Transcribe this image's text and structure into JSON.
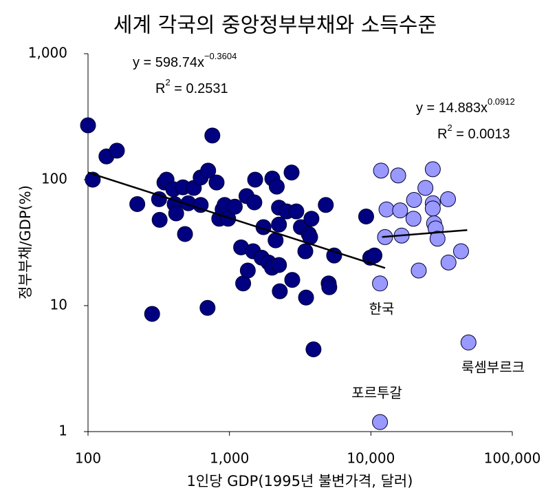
{
  "chart_data": {
    "type": "scatter",
    "title": "세계 각국의 중앙정부부채와 소득수준",
    "xlabel": "1인당 GDP(1995년 불변가격, 달러)",
    "ylabel": "정부부채/GDP(%)",
    "xscale": "log",
    "yscale": "log",
    "xlim": [
      100,
      100000
    ],
    "ylim": [
      1,
      1000
    ],
    "xticks": [
      100,
      {
        "value": 1000,
        "label": "1,000"
      },
      {
        "value": 10000,
        "label": "10,000"
      },
      {
        "value": 100000,
        "label": "100,000"
      }
    ],
    "yticks": [
      1,
      10,
      100,
      {
        "value": 1000,
        "label": "1,000"
      }
    ],
    "series": [
      {
        "color": "#000080",
        "x": [
          100,
          108,
          135,
          160,
          223,
          284,
          318,
          321,
          347,
          359,
          401,
          410,
          420,
          469,
          485,
          512,
          560,
          626,
          626,
          707,
          700,
          757,
          811,
          847,
          895,
          925,
          979,
          1091,
          1209,
          1250,
          1320,
          1348,
          1470,
          1520,
          1500,
          1740,
          1690,
          1890,
          2000,
          2010,
          2120,
          2160,
          2240,
          2240,
          2240,
          2270,
          2540,
          2750,
          2780,
          2970,
          3200,
          3440,
          3480,
          3640,
          3720,
          3800,
          3930,
          4800,
          5030,
          5080,
          5500,
          9260,
          9900,
          10600
        ],
        "values": [
          270,
          100,
          153,
          170,
          64,
          8.6,
          70,
          48,
          95,
          100,
          84,
          64,
          54,
          87,
          37,
          65,
          86,
          63,
          104,
          118,
          9.6,
          224,
          95,
          49,
          58,
          63,
          49,
          61,
          29,
          15,
          74,
          19,
          27,
          100,
          66,
          42,
          24,
          22,
          20,
          102,
          33,
          88,
          21,
          44,
          60,
          13,
          56,
          114,
          16,
          56,
          42,
          27,
          11.6,
          37,
          35,
          49,
          4.5,
          63,
          15,
          14,
          25,
          51,
          24,
          25
        ]
      },
      {
        "color": "#9999ff",
        "x": [
          11800,
          11600,
          12900,
          12600,
          15600,
          16100,
          16500,
          20200,
          20000,
          21800,
          24300,
          27400,
          27400,
          27400,
          28000,
          28700,
          29600,
          35100,
          35400,
          43400,
          49000,
          11600
        ],
        "values": [
          118,
          15,
          58,
          35,
          108,
          57,
          36,
          69,
          49,
          19,
          86,
          121,
          65,
          59,
          45,
          41,
          34,
          70,
          22,
          27,
          5.1,
          1.19
        ]
      }
    ],
    "trendlines": [
      {
        "color": "#000000",
        "x": [
          100,
          12600
        ],
        "values": [
          114,
          19.9
        ]
      },
      {
        "color": "#000000",
        "x": [
          12000,
          48000
        ],
        "values": [
          35.1,
          39.8
        ]
      }
    ],
    "equations": [
      {
        "main": "y = 598.74x",
        "exp": "−0.3604"
      },
      {
        "main": "R",
        "exp": "2",
        "tail": " = 0.2531"
      },
      {
        "main": "y = 14.883x",
        "exp": "0.0912"
      },
      {
        "main": "R",
        "exp": "2",
        "tail": " = 0.0013"
      }
    ],
    "annotations": [
      "한국",
      "룩셈부르크",
      "포르투갈"
    ]
  }
}
